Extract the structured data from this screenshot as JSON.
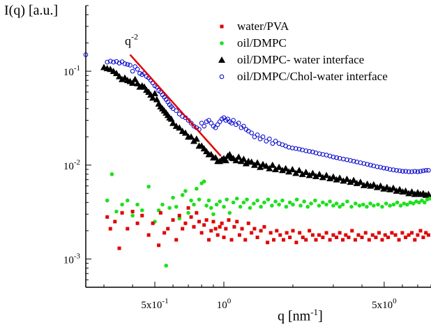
{
  "chart_data": {
    "type": "scatter",
    "xlabel_main": "q [nm",
    "xlabel_sup": "-1",
    "xlabel_end": "]",
    "ylabel": "I(q) [a.u.]",
    "x_scale": "log",
    "y_scale": "log",
    "xlim": [
      0.25,
      8.0
    ],
    "ylim": [
      0.0005,
      0.5
    ],
    "legend_placement": "top-right",
    "x_ticks": [
      {
        "value": 0.5,
        "base": "5x10",
        "exp": "-1"
      },
      {
        "value": 1.0,
        "base": "10",
        "exp": "0"
      },
      {
        "value": 5.0,
        "base": "5x10",
        "exp": "0"
      }
    ],
    "y_ticks": [
      {
        "value": 0.1,
        "base": "10",
        "exp": "-1"
      },
      {
        "value": 0.01,
        "base": "10",
        "exp": "-2"
      },
      {
        "value": 0.001,
        "base": "10",
        "exp": "-3"
      }
    ],
    "annotation": {
      "base": "q",
      "exp": "-2",
      "line_x": [
        0.39,
        0.97
      ],
      "line_y": [
        0.15,
        0.0125
      ],
      "label_x": 0.37,
      "label_y": 0.19
    },
    "series": [
      {
        "name": "water/PVA",
        "marker": "square",
        "color": "#e00000",
        "x": [
          0.31,
          0.32,
          0.335,
          0.35,
          0.36,
          0.38,
          0.4,
          0.42,
          0.44,
          0.47,
          0.49,
          0.52,
          0.53,
          0.55,
          0.57,
          0.6,
          0.62,
          0.64,
          0.66,
          0.68,
          0.7,
          0.72,
          0.74,
          0.76,
          0.78,
          0.8,
          0.82,
          0.84,
          0.86,
          0.88,
          0.9,
          0.92,
          0.94,
          0.96,
          0.98,
          1.0,
          1.02,
          1.05,
          1.08,
          1.11,
          1.14,
          1.17,
          1.2,
          1.24,
          1.28,
          1.32,
          1.36,
          1.4,
          1.45,
          1.5,
          1.55,
          1.6,
          1.65,
          1.7,
          1.76,
          1.82,
          1.88,
          1.94,
          2.0,
          2.07,
          2.14,
          2.21,
          2.28,
          2.36,
          2.44,
          2.52,
          2.6,
          2.7,
          2.8,
          2.9,
          3.0,
          3.1,
          3.2,
          3.3,
          3.4,
          3.5,
          3.62,
          3.74,
          3.86,
          4.0,
          4.15,
          4.3,
          4.45,
          4.6,
          4.75,
          4.9,
          5.05,
          5.2,
          5.4,
          5.6,
          5.8,
          6.0,
          6.2,
          6.4,
          6.6,
          6.8,
          7.0,
          7.2,
          7.4,
          7.6,
          7.8
        ],
        "y": [
          0.0028,
          0.0021,
          0.0025,
          0.0013,
          0.0031,
          0.0021,
          0.0032,
          0.0024,
          0.0029,
          0.0018,
          0.0024,
          0.0014,
          0.0031,
          0.0019,
          0.0021,
          0.0026,
          0.0016,
          0.0029,
          0.0021,
          0.0024,
          0.0035,
          0.0028,
          0.0022,
          0.0031,
          0.0025,
          0.0019,
          0.0023,
          0.0026,
          0.0016,
          0.002,
          0.0025,
          0.0021,
          0.0018,
          0.0022,
          0.0024,
          0.0017,
          0.0021,
          0.0026,
          0.0016,
          0.0022,
          0.0025,
          0.0018,
          0.0021,
          0.0016,
          0.0024,
          0.0019,
          0.0021,
          0.0017,
          0.002,
          0.0022,
          0.0015,
          0.0019,
          0.0016,
          0.002,
          0.0018,
          0.0016,
          0.0019,
          0.0017,
          0.002,
          0.0015,
          0.0019,
          0.0017,
          0.0016,
          0.002,
          0.0018,
          0.0016,
          0.0018,
          0.0017,
          0.0019,
          0.0016,
          0.0018,
          0.0017,
          0.0019,
          0.0016,
          0.0018,
          0.0017,
          0.002,
          0.0016,
          0.0018,
          0.0017,
          0.0019,
          0.0016,
          0.0018,
          0.0017,
          0.0019,
          0.0016,
          0.0018,
          0.0017,
          0.0019,
          0.0018,
          0.0016,
          0.0019,
          0.0017,
          0.0018,
          0.0019,
          0.0016,
          0.0018,
          0.002,
          0.0017,
          0.0019,
          0.0018
        ]
      },
      {
        "name": "oil/DMPC",
        "marker": "circle-filled",
        "color": "#1ee01e",
        "x": [
          0.31,
          0.325,
          0.34,
          0.36,
          0.38,
          0.4,
          0.42,
          0.44,
          0.47,
          0.5,
          0.52,
          0.54,
          0.56,
          0.58,
          0.6,
          0.62,
          0.64,
          0.66,
          0.68,
          0.7,
          0.72,
          0.74,
          0.76,
          0.78,
          0.8,
          0.82,
          0.84,
          0.86,
          0.88,
          0.9,
          0.93,
          0.96,
          1.0,
          1.03,
          1.06,
          1.1,
          1.14,
          1.18,
          1.22,
          1.26,
          1.3,
          1.35,
          1.4,
          1.45,
          1.5,
          1.56,
          1.62,
          1.68,
          1.74,
          1.8,
          1.87,
          1.94,
          2.0,
          2.08,
          2.16,
          2.24,
          2.32,
          2.4,
          2.5,
          2.6,
          2.7,
          2.8,
          2.9,
          3.0,
          3.1,
          3.2,
          3.3,
          3.45,
          3.6,
          3.75,
          3.9,
          4.05,
          4.2,
          4.35,
          4.5,
          4.7,
          4.9,
          5.1,
          5.3,
          5.5,
          5.7,
          5.9,
          6.1,
          6.3,
          6.5,
          6.7,
          6.9,
          7.1,
          7.3,
          7.5,
          7.7,
          7.9
        ],
        "y": [
          0.0042,
          0.008,
          0.0032,
          0.0038,
          0.0042,
          0.0029,
          0.0038,
          0.0033,
          0.0059,
          0.0025,
          0.0033,
          0.0038,
          0.00085,
          0.0035,
          0.0045,
          0.0036,
          0.0027,
          0.0048,
          0.0053,
          0.0031,
          0.0042,
          0.0038,
          0.0056,
          0.0043,
          0.0064,
          0.0067,
          0.0037,
          0.0042,
          0.0035,
          0.003,
          0.0038,
          0.0041,
          0.0036,
          0.0043,
          0.0031,
          0.004,
          0.0044,
          0.0036,
          0.004,
          0.0043,
          0.0035,
          0.0039,
          0.0042,
          0.0036,
          0.004,
          0.0043,
          0.0037,
          0.0041,
          0.0038,
          0.0042,
          0.0036,
          0.004,
          0.0038,
          0.0043,
          0.0037,
          0.0041,
          0.0036,
          0.0039,
          0.0042,
          0.0037,
          0.004,
          0.0038,
          0.0041,
          0.0037,
          0.0039,
          0.0036,
          0.0038,
          0.0041,
          0.0036,
          0.0039,
          0.0037,
          0.0038,
          0.0036,
          0.0039,
          0.0037,
          0.0038,
          0.0036,
          0.0039,
          0.0037,
          0.0038,
          0.004,
          0.0037,
          0.0039,
          0.0038,
          0.004,
          0.0039,
          0.0041,
          0.004,
          0.0042,
          0.004,
          0.0043,
          0.0044
        ]
      },
      {
        "name": "oil/DMPC- water interface",
        "marker": "triangle-filled",
        "color": "#000000",
        "x": [
          0.3,
          0.31,
          0.32,
          0.33,
          0.34,
          0.35,
          0.36,
          0.37,
          0.38,
          0.39,
          0.4,
          0.41,
          0.42,
          0.43,
          0.44,
          0.45,
          0.46,
          0.47,
          0.48,
          0.49,
          0.5,
          0.51,
          0.52,
          0.53,
          0.54,
          0.55,
          0.56,
          0.57,
          0.58,
          0.59,
          0.6,
          0.62,
          0.64,
          0.66,
          0.68,
          0.7,
          0.72,
          0.74,
          0.76,
          0.78,
          0.8,
          0.82,
          0.84,
          0.86,
          0.88,
          0.9,
          0.92,
          0.94,
          0.96,
          0.98,
          1.0,
          1.02,
          1.04,
          1.06,
          1.08,
          1.1,
          1.13,
          1.16,
          1.19,
          1.22,
          1.25,
          1.28,
          1.32,
          1.36,
          1.4,
          1.44,
          1.48,
          1.53,
          1.58,
          1.63,
          1.68,
          1.74,
          1.8,
          1.86,
          1.92,
          1.99,
          2.06,
          2.13,
          2.2,
          2.28,
          2.36,
          2.44,
          2.52,
          2.61,
          2.7,
          2.8,
          2.9,
          3.0,
          3.1,
          3.2,
          3.32,
          3.44,
          3.56,
          3.68,
          3.8,
          3.94,
          4.08,
          4.22,
          4.36,
          4.5,
          4.66,
          4.82,
          4.98,
          5.14,
          5.3,
          5.48,
          5.66,
          5.84,
          6.02,
          6.2,
          6.4,
          6.6,
          6.8,
          7.0,
          7.2,
          7.4,
          7.6,
          7.8
        ],
        "y": [
          0.11,
          0.107,
          0.105,
          0.1,
          0.095,
          0.088,
          0.082,
          0.085,
          0.08,
          0.078,
          0.075,
          0.082,
          0.074,
          0.068,
          0.07,
          0.068,
          0.063,
          0.06,
          0.056,
          0.052,
          0.058,
          0.05,
          0.045,
          0.042,
          0.04,
          0.038,
          0.036,
          0.034,
          0.032,
          0.031,
          0.028,
          0.026,
          0.025,
          0.023,
          0.022,
          0.02,
          0.02,
          0.018,
          0.019,
          0.016,
          0.016,
          0.015,
          0.014,
          0.013,
          0.013,
          0.012,
          0.012,
          0.011,
          0.011,
          0.0115,
          0.0118,
          0.0112,
          0.0125,
          0.013,
          0.012,
          0.0118,
          0.0112,
          0.0122,
          0.011,
          0.0116,
          0.0104,
          0.011,
          0.0108,
          0.01,
          0.0106,
          0.0095,
          0.0102,
          0.0098,
          0.0092,
          0.01,
          0.009,
          0.0095,
          0.0088,
          0.0092,
          0.0085,
          0.009,
          0.0082,
          0.0088,
          0.008,
          0.0084,
          0.0078,
          0.0082,
          0.0076,
          0.008,
          0.0074,
          0.0078,
          0.0072,
          0.0075,
          0.007,
          0.0073,
          0.0068,
          0.0071,
          0.0066,
          0.0069,
          0.0064,
          0.0066,
          0.0061,
          0.0063,
          0.006,
          0.0062,
          0.0058,
          0.006,
          0.0056,
          0.0058,
          0.0055,
          0.0057,
          0.0053,
          0.0055,
          0.0052,
          0.0053,
          0.005,
          0.0052,
          0.0049,
          0.0051,
          0.0049,
          0.005,
          0.0048,
          0.0049
        ]
      },
      {
        "name": "oil/DMPC/Chol-water interface",
        "marker": "circle-open",
        "color": "#0000cc",
        "x": [
          0.25,
          0.31,
          0.32,
          0.33,
          0.34,
          0.35,
          0.36,
          0.37,
          0.38,
          0.39,
          0.4,
          0.41,
          0.42,
          0.43,
          0.44,
          0.45,
          0.46,
          0.47,
          0.48,
          0.49,
          0.5,
          0.51,
          0.52,
          0.53,
          0.54,
          0.55,
          0.56,
          0.57,
          0.58,
          0.59,
          0.6,
          0.62,
          0.64,
          0.66,
          0.68,
          0.7,
          0.72,
          0.74,
          0.76,
          0.78,
          0.8,
          0.82,
          0.84,
          0.86,
          0.88,
          0.9,
          0.92,
          0.94,
          0.96,
          0.98,
          1.0,
          1.02,
          1.04,
          1.06,
          1.08,
          1.1,
          1.13,
          1.16,
          1.19,
          1.22,
          1.25,
          1.28,
          1.32,
          1.36,
          1.4,
          1.44,
          1.48,
          1.53,
          1.58,
          1.63,
          1.68,
          1.74,
          1.8,
          1.86,
          1.92,
          1.99,
          2.06,
          2.13,
          2.2,
          2.28,
          2.36,
          2.44,
          2.52,
          2.61,
          2.7,
          2.8,
          2.9,
          3.0,
          3.1,
          3.2,
          3.32,
          3.44,
          3.56,
          3.68,
          3.8,
          3.94,
          4.08,
          4.22,
          4.36,
          4.5,
          4.66,
          4.82,
          4.98,
          5.14,
          5.3,
          5.48,
          5.66,
          5.84,
          6.02,
          6.2,
          6.4,
          6.6,
          6.8,
          7.0,
          7.2,
          7.4,
          7.6,
          7.8
        ],
        "y": [
          0.15,
          0.125,
          0.128,
          0.125,
          0.127,
          0.122,
          0.126,
          0.12,
          0.118,
          0.116,
          0.1,
          0.112,
          0.105,
          0.095,
          0.092,
          0.095,
          0.088,
          0.085,
          0.08,
          0.075,
          0.07,
          0.068,
          0.062,
          0.06,
          0.056,
          0.053,
          0.05,
          0.047,
          0.044,
          0.042,
          0.04,
          0.038,
          0.035,
          0.033,
          0.032,
          0.03,
          0.028,
          0.026,
          0.025,
          0.024,
          0.028,
          0.026,
          0.029,
          0.03,
          0.028,
          0.026,
          0.025,
          0.027,
          0.029,
          0.031,
          0.032,
          0.03,
          0.031,
          0.029,
          0.028,
          0.03,
          0.027,
          0.028,
          0.025,
          0.026,
          0.024,
          0.023,
          0.022,
          0.02,
          0.021,
          0.019,
          0.02,
          0.018,
          0.019,
          0.017,
          0.018,
          0.017,
          0.0165,
          0.016,
          0.0155,
          0.0152,
          0.015,
          0.0148,
          0.0145,
          0.0142,
          0.014,
          0.0138,
          0.0135,
          0.0132,
          0.013,
          0.0128,
          0.0125,
          0.0122,
          0.012,
          0.0118,
          0.0116,
          0.0114,
          0.0112,
          0.011,
          0.0108,
          0.0106,
          0.0104,
          0.0102,
          0.01,
          0.0098,
          0.0096,
          0.0095,
          0.0093,
          0.0092,
          0.009,
          0.0089,
          0.0088,
          0.0087,
          0.0086,
          0.0086,
          0.0085,
          0.0085,
          0.0086,
          0.0085,
          0.0086,
          0.0087,
          0.0088,
          0.0088
        ]
      }
    ]
  }
}
